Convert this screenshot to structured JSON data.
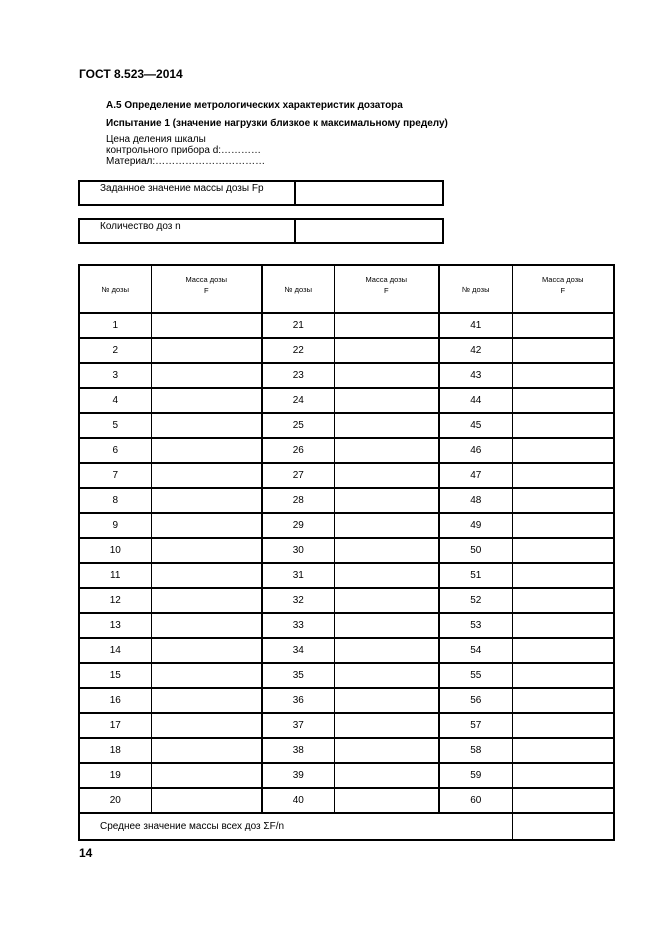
{
  "header": {
    "doc_code": "ГОСТ 8.523—2014"
  },
  "section_title": "А.5 Определение метрологических характеристик дозатора",
  "test_title": "Испытание 1 (значение нагрузки близкое к максимальному пределу)",
  "info": {
    "line1": "Цена деления шкалы",
    "line2": "контрольного прибора d:…………",
    "line3": "Материал:……………………………"
  },
  "box1": {
    "label": "Заданное значение массы дозы Fp",
    "value": ""
  },
  "box2": {
    "label": "Количество доз n",
    "value": ""
  },
  "table": {
    "headers": [
      "№ дозы",
      "Масса дозы F",
      "№ дозы",
      "Масса дозы F",
      "№ дозы",
      "Масса дозы F"
    ],
    "rows": [
      [
        1,
        21,
        41
      ],
      [
        2,
        22,
        42
      ],
      [
        3,
        23,
        43
      ],
      [
        4,
        24,
        44
      ],
      [
        5,
        25,
        45
      ],
      [
        6,
        26,
        46
      ],
      [
        7,
        27,
        47
      ],
      [
        8,
        28,
        48
      ],
      [
        9,
        29,
        49
      ],
      [
        10,
        30,
        50
      ],
      [
        11,
        31,
        51
      ],
      [
        12,
        32,
        52
      ],
      [
        13,
        33,
        53
      ],
      [
        14,
        34,
        54
      ],
      [
        15,
        35,
        55
      ],
      [
        16,
        36,
        56
      ],
      [
        17,
        37,
        57
      ],
      [
        18,
        38,
        58
      ],
      [
        19,
        39,
        59
      ],
      [
        20,
        40,
        60
      ]
    ],
    "footer_label": "Среднее значение массы всех доз ΣF/n",
    "footer_value": ""
  },
  "page_number": "14"
}
